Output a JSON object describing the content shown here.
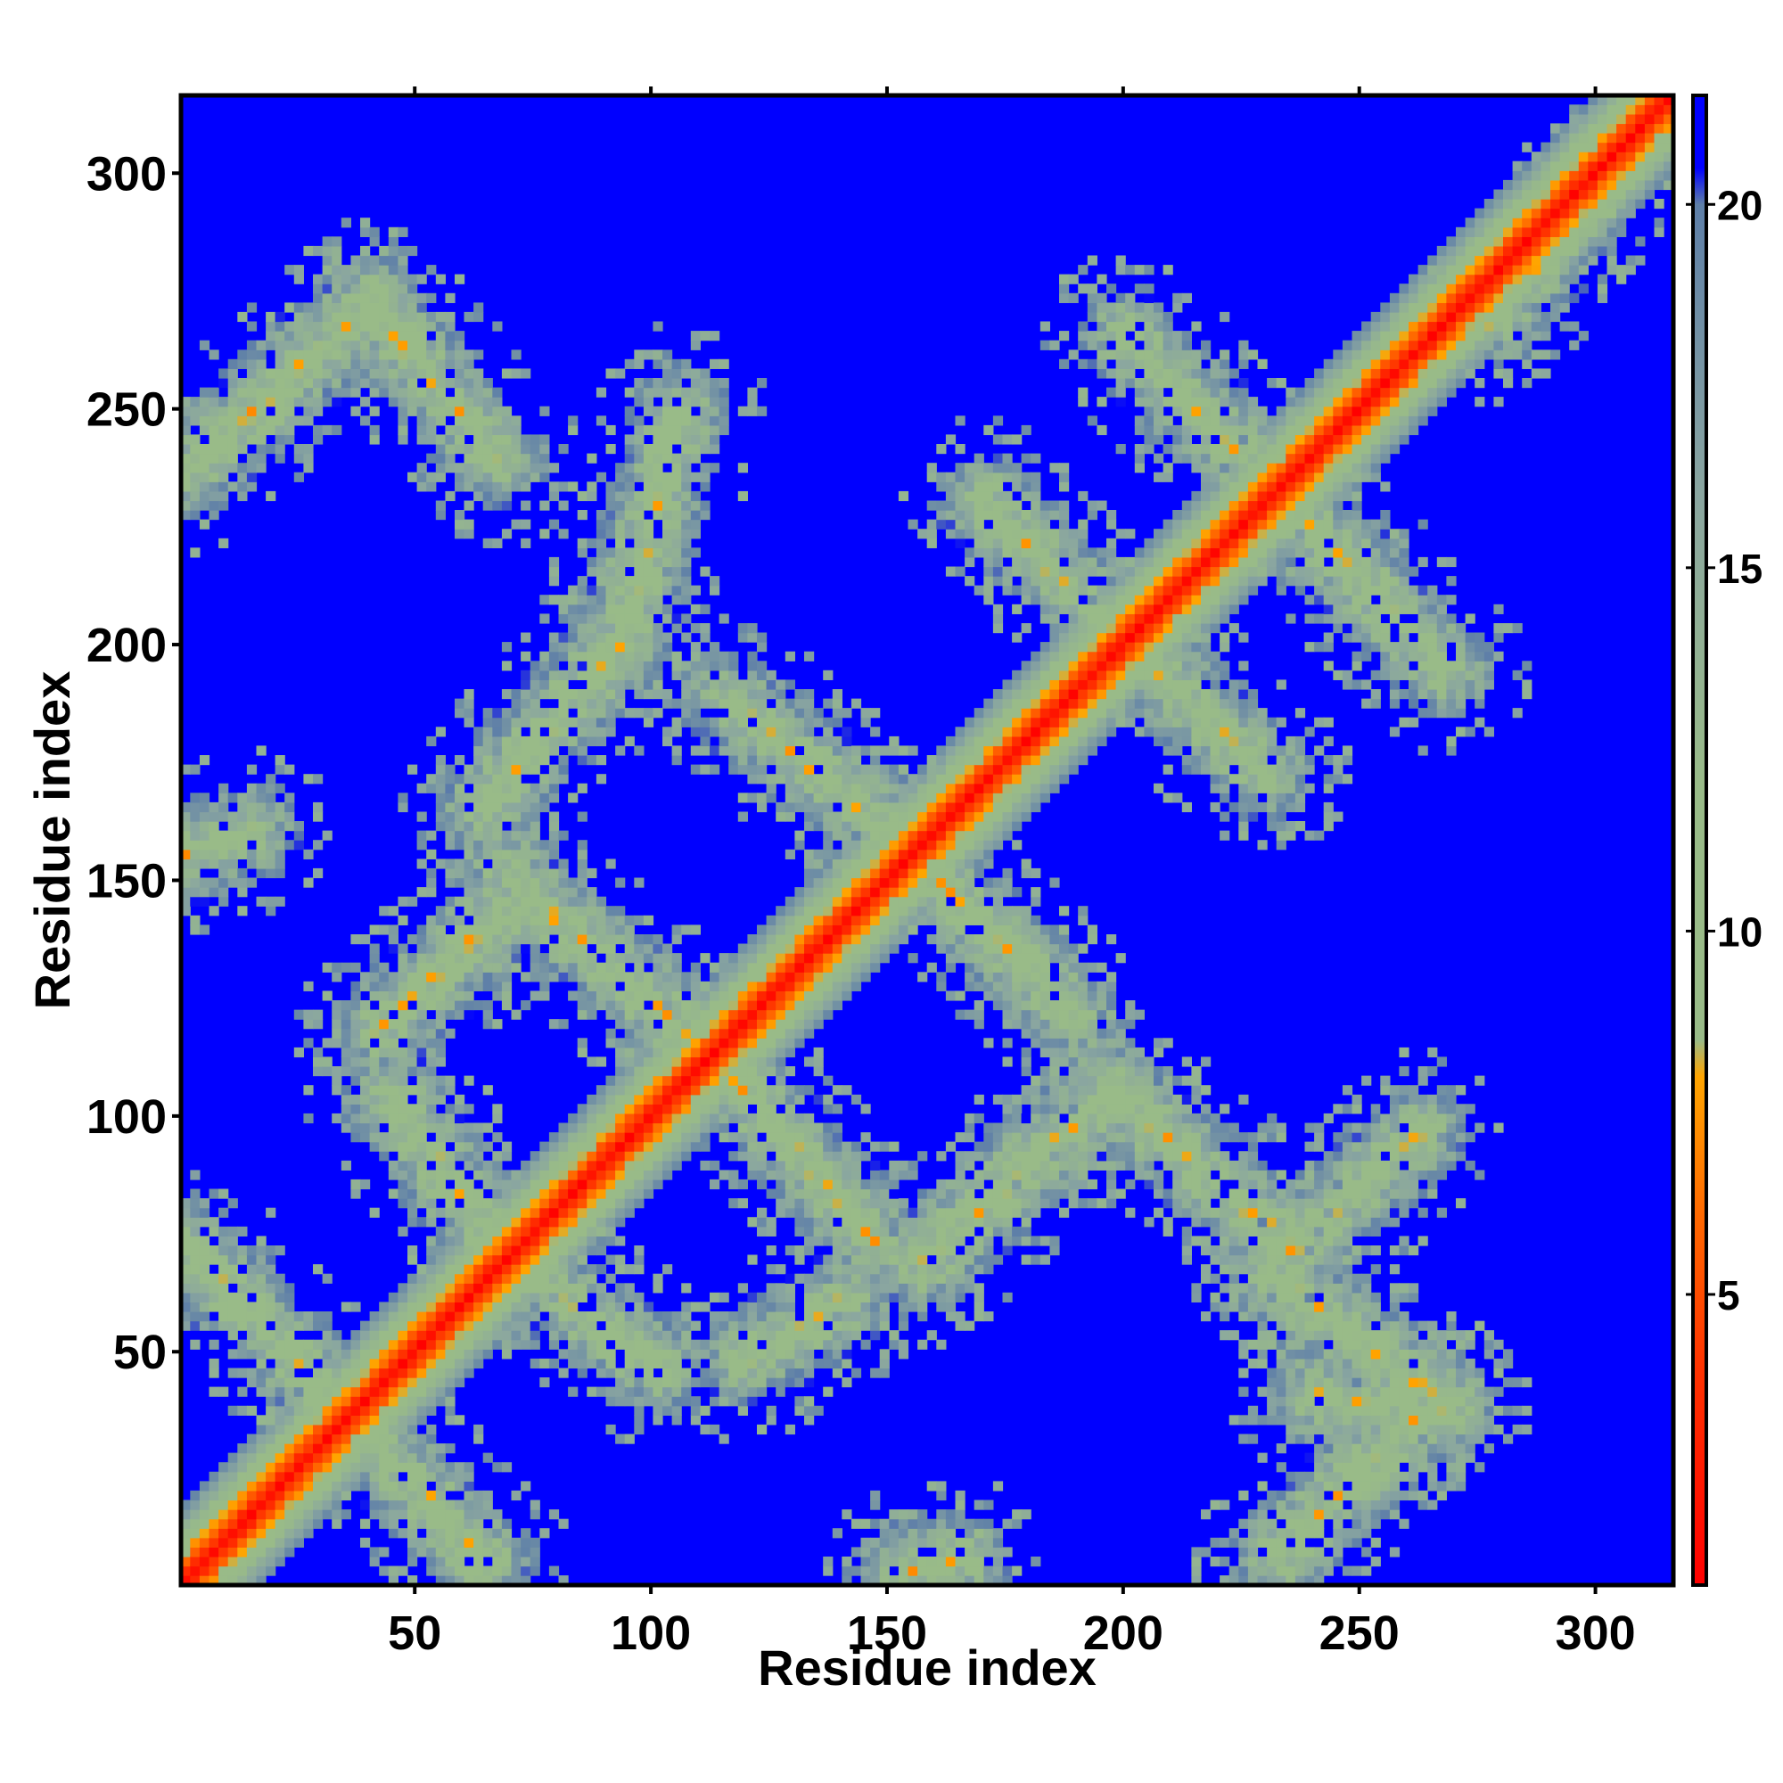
{
  "chart_data": {
    "type": "heatmap",
    "title": "",
    "xlabel": "Residue index",
    "ylabel": "Residue index",
    "xlim": [
      1,
      316
    ],
    "ylim": [
      1,
      316
    ],
    "x_ticks": [
      50,
      100,
      150,
      200,
      250,
      300
    ],
    "y_ticks": [
      50,
      100,
      150,
      200,
      250,
      300
    ],
    "colorbar": {
      "range": [
        1,
        21.5
      ],
      "ticks": [
        5,
        10,
        15,
        20
      ],
      "colors": [
        {
          "value": 1,
          "color": "#ff0000"
        },
        {
          "value": 4,
          "color": "#ff3300"
        },
        {
          "value": 6,
          "color": "#ff6600"
        },
        {
          "value": 8,
          "color": "#ffa500"
        },
        {
          "value": 8.5,
          "color": "#99bb88"
        },
        {
          "value": 12,
          "color": "#99bb88"
        },
        {
          "value": 16,
          "color": "#8aa6a0"
        },
        {
          "value": 20,
          "color": "#5e7fa8"
        },
        {
          "value": 20.5,
          "color": "#0000ff"
        },
        {
          "value": 21.5,
          "color": "#0000ff"
        }
      ]
    },
    "background_value": 21,
    "diagonal": {
      "from": 1,
      "to": 316
    },
    "contact_bands": [
      {
        "from": [
          1,
          72
        ],
        "to": [
          65,
          5
        ]
      },
      {
        "from": [
          1,
          236
        ],
        "to": [
          40,
          272
        ]
      },
      {
        "from": [
          40,
          272
        ],
        "to": [
          68,
          238
        ]
      },
      {
        "from": [
          44,
          104
        ],
        "to": [
          68,
          70
        ]
      },
      {
        "from": [
          68,
          70
        ],
        "to": [
          102,
          46
        ]
      },
      {
        "from": [
          64,
          165
        ],
        "to": [
          93,
          200
        ]
      },
      {
        "from": [
          93,
          200
        ],
        "to": [
          106,
          250
        ]
      },
      {
        "from": [
          70,
          150
        ],
        "to": [
          113,
          112
        ]
      },
      {
        "from": [
          113,
          112
        ],
        "to": [
          148,
          72
        ]
      },
      {
        "from": [
          42,
          118
        ],
        "to": [
          67,
          142
        ]
      },
      {
        "from": [
          116,
          188
        ],
        "to": [
          150,
          160
        ]
      },
      {
        "from": [
          150,
          160
        ],
        "to": [
          188,
          122
        ]
      },
      {
        "from": [
          157,
          68
        ],
        "to": [
          180,
          90
        ]
      },
      {
        "from": [
          180,
          90
        ],
        "to": [
          198,
          104
        ]
      },
      {
        "from": [
          198,
          104
        ],
        "to": [
          235,
          72
        ]
      },
      {
        "from": [
          170,
          230
        ],
        "to": [
          200,
          200
        ]
      },
      {
        "from": [
          200,
          200
        ],
        "to": [
          230,
          172
        ]
      },
      {
        "from": [
          200,
          265
        ],
        "to": [
          232,
          232
        ]
      },
      {
        "from": [
          232,
          232
        ],
        "to": [
          268,
          194
        ]
      },
      {
        "from": [
          120,
          48
        ],
        "to": [
          140,
          60
        ]
      },
      {
        "from": [
          240,
          40
        ],
        "to": [
          268,
          38
        ]
      },
      {
        "from": [
          232,
          65
        ],
        "to": [
          268,
          38
        ]
      },
      {
        "from": [
          232,
          6
        ],
        "to": [
          262,
          36
        ]
      },
      {
        "from": [
          234,
          70
        ],
        "to": [
          262,
          96
        ]
      },
      {
        "from": [
          1,
          155
        ],
        "to": [
          15,
          160
        ]
      },
      {
        "from": [
          152,
          2
        ],
        "to": [
          166,
          6
        ]
      },
      {
        "from": [
          278,
          268
        ],
        "to": [
          300,
          296
        ]
      }
    ]
  }
}
